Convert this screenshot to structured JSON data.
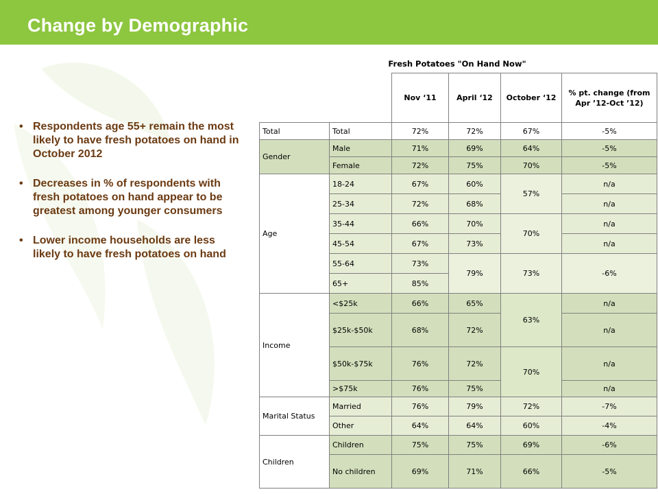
{
  "header": {
    "title": "Change by Demographic"
  },
  "bullets": [
    "Respondents age 55+ remain the most likely to have fresh potatoes on hand in October 2012",
    "Decreases in % of respondents with fresh potatoes on hand appear to be greatest among younger consumers",
    "Lower income households are less likely to have fresh potatoes on hand"
  ],
  "table": {
    "title": "Fresh Potatoes \"On Hand Now\"",
    "columns": [
      "Nov ‘11",
      "April ‘12",
      "October ‘12",
      "% pt. change (from Apr ’12-Oct ’12)"
    ],
    "rows": {
      "total": {
        "cat": "Total",
        "sub": "Total",
        "nov": "72%",
        "apr": "72%",
        "oct": "67%",
        "chg": "-5%"
      },
      "male": {
        "cat": "Gender",
        "sub": "Male",
        "nov": "71%",
        "apr": "69%",
        "oct": "64%",
        "chg": "-5%"
      },
      "female": {
        "sub": "Female",
        "nov": "72%",
        "apr": "75%",
        "oct": "70%",
        "chg": "-5%"
      },
      "a1824": {
        "cat": "Age",
        "sub": "18-24",
        "nov": "67%",
        "apr": "60%",
        "oct": "57%",
        "chg": "n/a"
      },
      "a2534": {
        "sub": "25-34",
        "nov": "72%",
        "apr": "68%",
        "chg": "n/a"
      },
      "a3544": {
        "sub": "35-44",
        "nov": "66%",
        "apr": "70%",
        "oct": "70%",
        "chg": "n/a"
      },
      "a4554": {
        "sub": "45-54",
        "nov": "67%",
        "apr": "73%",
        "chg": "n/a"
      },
      "a5564": {
        "sub": "55-64",
        "nov": "73%",
        "apr": "79%",
        "oct": "73%",
        "chg": "-6%"
      },
      "a65": {
        "sub": "65+",
        "nov": "85%"
      },
      "i25": {
        "cat": "Income",
        "sub": "<$25k",
        "nov": "66%",
        "apr": "65%",
        "oct": "63%",
        "chg": "n/a"
      },
      "i2550": {
        "sub": "$25k-$50k",
        "nov": "68%",
        "apr": "72%",
        "chg": "n/a"
      },
      "i5075": {
        "sub": "$50k-$75k",
        "nov": "76%",
        "apr": "72%",
        "oct": "70%",
        "chg": "n/a"
      },
      "i75": {
        "sub": ">$75k",
        "nov": "76%",
        "apr": "75%",
        "chg": "n/a"
      },
      "married": {
        "cat": "Marital Status",
        "sub": "Married",
        "nov": "76%",
        "apr": "79%",
        "oct": "72%",
        "chg": "-7%"
      },
      "other": {
        "sub": "Other",
        "nov": "64%",
        "apr": "64%",
        "oct": "60%",
        "chg": "-4%"
      },
      "children": {
        "cat": "Children",
        "sub": "Children",
        "nov": "75%",
        "apr": "75%",
        "oct": "69%",
        "chg": "-6%"
      },
      "nochildren": {
        "sub": "No children",
        "nov": "69%",
        "apr": "71%",
        "oct": "66%",
        "chg": "-5%"
      }
    }
  },
  "colors": {
    "accent": "#8dc63f",
    "bullet_text": "#6b3a12",
    "row_light": "#e6edd5",
    "row_dark": "#d3dfbc"
  }
}
